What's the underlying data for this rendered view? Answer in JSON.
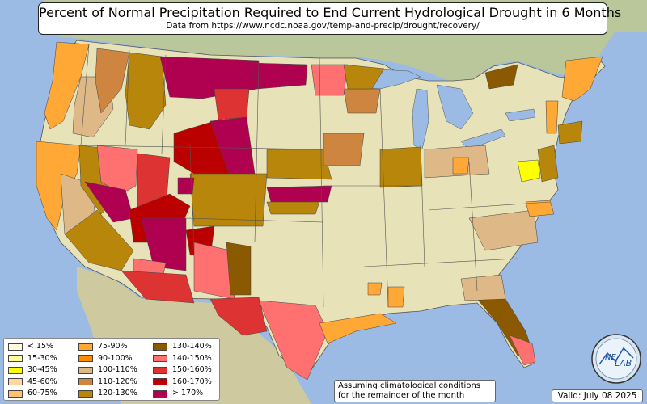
{
  "title": "Percent of Normal Precipitation Required to End Current Hydrological Drought in 6 Months",
  "subtitle": "Data from https://www.ncdc.noaa.gov/temp-and-precip/drought/recovery/",
  "legend": {
    "columns": [
      [
        {
          "label": "< 15%",
          "color": "#ffffe0"
        },
        {
          "label": "15-30%",
          "color": "#ffff99"
        },
        {
          "label": "30-45%",
          "color": "#ffff00"
        },
        {
          "label": "45-60%",
          "color": "#ffd7a0"
        },
        {
          "label": "60-75%",
          "color": "#ffc072"
        }
      ],
      [
        {
          "label": "75-90%",
          "color": "#ffa835"
        },
        {
          "label": "90-100%",
          "color": "#ff8c00"
        },
        {
          "label": "100-110%",
          "color": "#deb887"
        },
        {
          "label": "110-120%",
          "color": "#cd853f"
        },
        {
          "label": "120-130%",
          "color": "#b8860b"
        }
      ],
      [
        {
          "label": "130-140%",
          "color": "#8b5a00"
        },
        {
          "label": "140-150%",
          "color": "#ff7070"
        },
        {
          "label": "150-160%",
          "color": "#dd3333"
        },
        {
          "label": "160-170%",
          "color": "#bb0000"
        },
        {
          "label": "> 170%",
          "color": "#b00050"
        }
      ]
    ]
  },
  "note": {
    "line1": "Assuming climatological conditions",
    "line2": "for the remainder of the month"
  },
  "valid": "Valid: July 08 2025",
  "logo": {
    "text1": "NE",
    "text2": "LAB"
  },
  "colors": {
    "water": "#9bbbe4",
    "land": "#e2dcb2",
    "no_drought": "#e8e2b8"
  }
}
